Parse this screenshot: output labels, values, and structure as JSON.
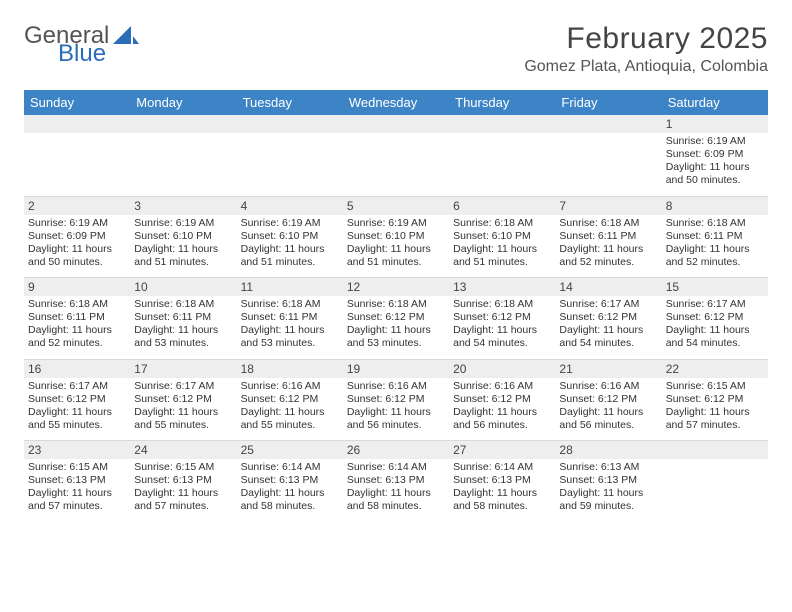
{
  "brand": {
    "text1": "General",
    "text2": "Blue",
    "logo_color": "#2a6db8",
    "text1_color": "#555555"
  },
  "title": {
    "month": "February 2025",
    "location": "Gomez Plata, Antioquia, Colombia"
  },
  "colors": {
    "header_bg": "#3d84c6",
    "header_fg": "#ffffff",
    "stripe": "#eeeeee",
    "border": "#d9d9d9",
    "text": "#333333"
  },
  "days": [
    "Sunday",
    "Monday",
    "Tuesday",
    "Wednesday",
    "Thursday",
    "Friday",
    "Saturday"
  ],
  "weeks": [
    [
      null,
      null,
      null,
      null,
      null,
      null,
      {
        "n": "1",
        "sunrise": "Sunrise: 6:19 AM",
        "sunset": "Sunset: 6:09 PM",
        "daylight": "Daylight: 11 hours and 50 minutes."
      }
    ],
    [
      {
        "n": "2",
        "sunrise": "Sunrise: 6:19 AM",
        "sunset": "Sunset: 6:09 PM",
        "daylight": "Daylight: 11 hours and 50 minutes."
      },
      {
        "n": "3",
        "sunrise": "Sunrise: 6:19 AM",
        "sunset": "Sunset: 6:10 PM",
        "daylight": "Daylight: 11 hours and 51 minutes."
      },
      {
        "n": "4",
        "sunrise": "Sunrise: 6:19 AM",
        "sunset": "Sunset: 6:10 PM",
        "daylight": "Daylight: 11 hours and 51 minutes."
      },
      {
        "n": "5",
        "sunrise": "Sunrise: 6:19 AM",
        "sunset": "Sunset: 6:10 PM",
        "daylight": "Daylight: 11 hours and 51 minutes."
      },
      {
        "n": "6",
        "sunrise": "Sunrise: 6:18 AM",
        "sunset": "Sunset: 6:10 PM",
        "daylight": "Daylight: 11 hours and 51 minutes."
      },
      {
        "n": "7",
        "sunrise": "Sunrise: 6:18 AM",
        "sunset": "Sunset: 6:11 PM",
        "daylight": "Daylight: 11 hours and 52 minutes."
      },
      {
        "n": "8",
        "sunrise": "Sunrise: 6:18 AM",
        "sunset": "Sunset: 6:11 PM",
        "daylight": "Daylight: 11 hours and 52 minutes."
      }
    ],
    [
      {
        "n": "9",
        "sunrise": "Sunrise: 6:18 AM",
        "sunset": "Sunset: 6:11 PM",
        "daylight": "Daylight: 11 hours and 52 minutes."
      },
      {
        "n": "10",
        "sunrise": "Sunrise: 6:18 AM",
        "sunset": "Sunset: 6:11 PM",
        "daylight": "Daylight: 11 hours and 53 minutes."
      },
      {
        "n": "11",
        "sunrise": "Sunrise: 6:18 AM",
        "sunset": "Sunset: 6:11 PM",
        "daylight": "Daylight: 11 hours and 53 minutes."
      },
      {
        "n": "12",
        "sunrise": "Sunrise: 6:18 AM",
        "sunset": "Sunset: 6:12 PM",
        "daylight": "Daylight: 11 hours and 53 minutes."
      },
      {
        "n": "13",
        "sunrise": "Sunrise: 6:18 AM",
        "sunset": "Sunset: 6:12 PM",
        "daylight": "Daylight: 11 hours and 54 minutes."
      },
      {
        "n": "14",
        "sunrise": "Sunrise: 6:17 AM",
        "sunset": "Sunset: 6:12 PM",
        "daylight": "Daylight: 11 hours and 54 minutes."
      },
      {
        "n": "15",
        "sunrise": "Sunrise: 6:17 AM",
        "sunset": "Sunset: 6:12 PM",
        "daylight": "Daylight: 11 hours and 54 minutes."
      }
    ],
    [
      {
        "n": "16",
        "sunrise": "Sunrise: 6:17 AM",
        "sunset": "Sunset: 6:12 PM",
        "daylight": "Daylight: 11 hours and 55 minutes."
      },
      {
        "n": "17",
        "sunrise": "Sunrise: 6:17 AM",
        "sunset": "Sunset: 6:12 PM",
        "daylight": "Daylight: 11 hours and 55 minutes."
      },
      {
        "n": "18",
        "sunrise": "Sunrise: 6:16 AM",
        "sunset": "Sunset: 6:12 PM",
        "daylight": "Daylight: 11 hours and 55 minutes."
      },
      {
        "n": "19",
        "sunrise": "Sunrise: 6:16 AM",
        "sunset": "Sunset: 6:12 PM",
        "daylight": "Daylight: 11 hours and 56 minutes."
      },
      {
        "n": "20",
        "sunrise": "Sunrise: 6:16 AM",
        "sunset": "Sunset: 6:12 PM",
        "daylight": "Daylight: 11 hours and 56 minutes."
      },
      {
        "n": "21",
        "sunrise": "Sunrise: 6:16 AM",
        "sunset": "Sunset: 6:12 PM",
        "daylight": "Daylight: 11 hours and 56 minutes."
      },
      {
        "n": "22",
        "sunrise": "Sunrise: 6:15 AM",
        "sunset": "Sunset: 6:12 PM",
        "daylight": "Daylight: 11 hours and 57 minutes."
      }
    ],
    [
      {
        "n": "23",
        "sunrise": "Sunrise: 6:15 AM",
        "sunset": "Sunset: 6:13 PM",
        "daylight": "Daylight: 11 hours and 57 minutes."
      },
      {
        "n": "24",
        "sunrise": "Sunrise: 6:15 AM",
        "sunset": "Sunset: 6:13 PM",
        "daylight": "Daylight: 11 hours and 57 minutes."
      },
      {
        "n": "25",
        "sunrise": "Sunrise: 6:14 AM",
        "sunset": "Sunset: 6:13 PM",
        "daylight": "Daylight: 11 hours and 58 minutes."
      },
      {
        "n": "26",
        "sunrise": "Sunrise: 6:14 AM",
        "sunset": "Sunset: 6:13 PM",
        "daylight": "Daylight: 11 hours and 58 minutes."
      },
      {
        "n": "27",
        "sunrise": "Sunrise: 6:14 AM",
        "sunset": "Sunset: 6:13 PM",
        "daylight": "Daylight: 11 hours and 58 minutes."
      },
      {
        "n": "28",
        "sunrise": "Sunrise: 6:13 AM",
        "sunset": "Sunset: 6:13 PM",
        "daylight": "Daylight: 11 hours and 59 minutes."
      },
      null
    ]
  ]
}
